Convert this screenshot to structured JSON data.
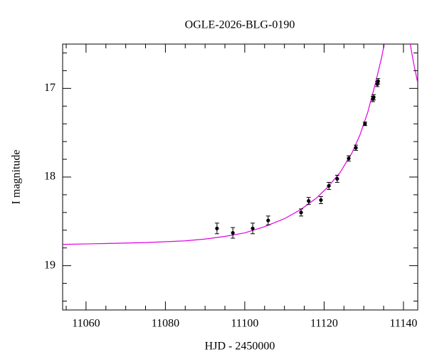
{
  "chart_data": {
    "type": "scatter",
    "title": "OGLE-2026-BLG-0190",
    "x_label": "HJD - 2450000",
    "y_label": "I magnitude",
    "xlim": [
      11054.1,
      11143.6
    ],
    "ylim": [
      19.5,
      16.5
    ],
    "xticks": [
      11060,
      11080,
      11100,
      11120,
      11140
    ],
    "yticks": [
      17,
      18,
      19
    ],
    "xminor_ticks": [
      11055,
      11065,
      11070,
      11075,
      11085,
      11090,
      11095,
      11105,
      11110,
      11115,
      11125,
      11130,
      11135
    ],
    "yminor_ticks": [
      16.6,
      16.8,
      17.2,
      17.4,
      17.6,
      17.8,
      18.2,
      18.4,
      18.6,
      18.8,
      19.2,
      19.4
    ],
    "x": [
      11093.0,
      11097.0,
      11102.0,
      11105.9,
      11114.2,
      11116.1,
      11119.2,
      11121.2,
      11123.3,
      11126.2,
      11128.0,
      11130.3,
      11132.3,
      11132.5,
      11133.4,
      11133.6
    ],
    "values": [
      18.58,
      18.63,
      18.58,
      18.49,
      18.4,
      18.27,
      18.26,
      18.1,
      18.02,
      17.79,
      17.67,
      17.4,
      17.12,
      17.1,
      16.95,
      16.92
    ],
    "errors": [
      0.06,
      0.06,
      0.06,
      0.05,
      0.04,
      0.04,
      0.04,
      0.04,
      0.04,
      0.03,
      0.03,
      0.02,
      0.03,
      0.03,
      0.03,
      0.03
    ],
    "color": "#000000",
    "model": {
      "color": "#e000e0",
      "x": [
        11054.1,
        11065,
        11075,
        11085,
        11090,
        11095,
        11100,
        11105,
        11110,
        11114,
        11118,
        11121,
        11124,
        11127,
        11129,
        11131,
        11133,
        11134.5,
        11135.5,
        null,
        11141.5,
        11142.5,
        11143.6
      ],
      "values": [
        18.76,
        18.75,
        18.74,
        18.72,
        18.7,
        18.67,
        18.63,
        18.56,
        18.47,
        18.37,
        18.24,
        18.11,
        17.95,
        17.73,
        17.53,
        17.27,
        16.93,
        16.65,
        16.42,
        null,
        16.45,
        16.7,
        16.94
      ]
    }
  }
}
